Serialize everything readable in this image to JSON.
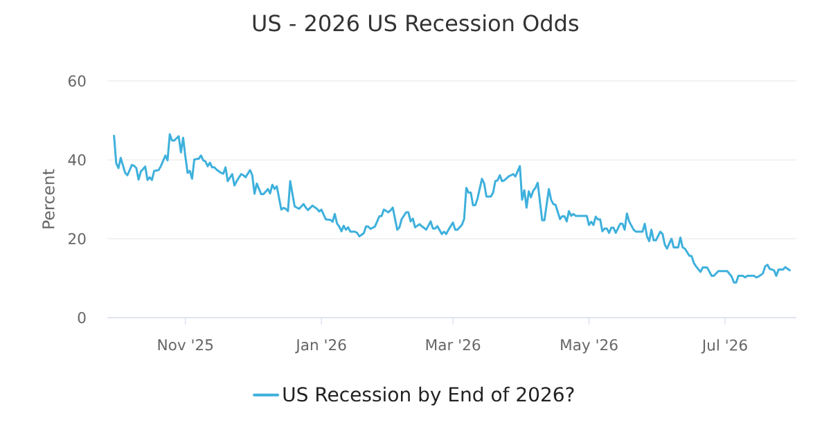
{
  "chart_data": {
    "type": "line",
    "title": "US - 2026 US Recession Odds",
    "ylabel": "Percent",
    "x": [
      "2025-09-30",
      "2025-10-01",
      "2025-10-02",
      "2025-10-03",
      "2025-10-05",
      "2025-10-06",
      "2025-10-08",
      "2025-10-09",
      "2025-10-10",
      "2025-10-11",
      "2025-10-12",
      "2025-10-14",
      "2025-10-15",
      "2025-10-16",
      "2025-10-17",
      "2025-10-18",
      "2025-10-20",
      "2025-10-21",
      "2025-10-23",
      "2025-10-24",
      "2025-10-25",
      "2025-10-26",
      "2025-10-27",
      "2025-10-29",
      "2025-10-30",
      "2025-10-31",
      "2025-11-01",
      "2025-11-02",
      "2025-11-03",
      "2025-11-04",
      "2025-11-05",
      "2025-11-07",
      "2025-11-08",
      "2025-11-09",
      "2025-11-10",
      "2025-11-11",
      "2025-11-12",
      "2025-11-13",
      "2025-11-14",
      "2025-11-15",
      "2025-11-17",
      "2025-11-18",
      "2025-11-19",
      "2025-11-20",
      "2025-11-22",
      "2025-11-23",
      "2025-11-24",
      "2025-11-26",
      "2025-11-27",
      "2025-11-28",
      "2025-11-30",
      "2025-12-01",
      "2025-12-02",
      "2025-12-03",
      "2025-12-05",
      "2025-12-06",
      "2025-12-08",
      "2025-12-09",
      "2025-12-10",
      "2025-12-11",
      "2025-12-12",
      "2025-12-14",
      "2025-12-15",
      "2025-12-16",
      "2025-12-17",
      "2025-12-18",
      "2025-12-20",
      "2025-12-21",
      "2025-12-22",
      "2025-12-24",
      "2025-12-25",
      "2025-12-26",
      "2025-12-28",
      "2025-12-30",
      "2025-12-31",
      "2026-01-01",
      "2026-01-03",
      "2026-01-05",
      "2026-01-06",
      "2026-01-07",
      "2026-01-08",
      "2026-01-09",
      "2026-01-10",
      "2026-01-11",
      "2026-01-12",
      "2026-01-13",
      "2026-01-14",
      "2026-01-16",
      "2026-01-17",
      "2026-01-18",
      "2026-01-20",
      "2026-01-21",
      "2026-01-22",
      "2026-01-23",
      "2026-01-25",
      "2026-01-27",
      "2026-01-28",
      "2026-01-29",
      "2026-01-31",
      "2026-02-01",
      "2026-02-02",
      "2026-02-04",
      "2026-02-05",
      "2026-02-06",
      "2026-02-08",
      "2026-02-09",
      "2026-02-10",
      "2026-02-11",
      "2026-02-12",
      "2026-02-14",
      "2026-02-15",
      "2026-02-17",
      "2026-02-19",
      "2026-02-20",
      "2026-02-21",
      "2026-02-22",
      "2026-02-24",
      "2026-02-25",
      "2026-02-26",
      "2026-02-27",
      "2026-03-01",
      "2026-03-02",
      "2026-03-03",
      "2026-03-05",
      "2026-03-06",
      "2026-03-07",
      "2026-03-08",
      "2026-03-09",
      "2026-03-10",
      "2026-03-11",
      "2026-03-12",
      "2026-03-14",
      "2026-03-15",
      "2026-03-16",
      "2026-03-18",
      "2026-03-19",
      "2026-03-20",
      "2026-03-21",
      "2026-03-22",
      "2026-03-23",
      "2026-03-24",
      "2026-03-26",
      "2026-03-27",
      "2026-03-28",
      "2026-03-29",
      "2026-03-31",
      "2026-04-01",
      "2026-04-02",
      "2026-04-03",
      "2026-04-04",
      "2026-04-05",
      "2026-04-06",
      "2026-04-07",
      "2026-04-08",
      "2026-04-10",
      "2026-04-11",
      "2026-04-13",
      "2026-04-14",
      "2026-04-15",
      "2026-04-16",
      "2026-04-18",
      "2026-04-19",
      "2026-04-20",
      "2026-04-21",
      "2026-04-22",
      "2026-04-23",
      "2026-04-24",
      "2026-04-25",
      "2026-04-30",
      "2026-05-01",
      "2026-05-02",
      "2026-05-03",
      "2026-05-04",
      "2026-05-05",
      "2026-05-06",
      "2026-05-07",
      "2026-05-08",
      "2026-05-09",
      "2026-05-10",
      "2026-05-11",
      "2026-05-12",
      "2026-05-13",
      "2026-05-15",
      "2026-05-16",
      "2026-05-17",
      "2026-05-18",
      "2026-05-19",
      "2026-05-21",
      "2026-05-22",
      "2026-05-25",
      "2026-05-26",
      "2026-05-27",
      "2026-05-28",
      "2026-05-29",
      "2026-05-30",
      "2026-05-31",
      "2026-06-02",
      "2026-06-03",
      "2026-06-04",
      "2026-06-05",
      "2026-06-06",
      "2026-06-07",
      "2026-06-08",
      "2026-06-10",
      "2026-06-11",
      "2026-06-12",
      "2026-06-13",
      "2026-06-15",
      "2026-06-16",
      "2026-06-17",
      "2026-06-18",
      "2026-06-20",
      "2026-06-21",
      "2026-06-23",
      "2026-06-25",
      "2026-06-26",
      "2026-06-28",
      "2026-07-02",
      "2026-07-04",
      "2026-07-05",
      "2026-07-06",
      "2026-07-07",
      "2026-07-09",
      "2026-07-10",
      "2026-07-11",
      "2026-07-14",
      "2026-07-15",
      "2026-07-16",
      "2026-07-18",
      "2026-07-19",
      "2026-07-20",
      "2026-07-21",
      "2026-07-23",
      "2026-07-24",
      "2026-07-25",
      "2026-07-27",
      "2026-07-28",
      "2026-07-30"
    ],
    "series": [
      {
        "name": "US Recession by End of 2026?",
        "color": "#3eb0dc",
        "values": [
          46.1,
          39.1,
          37.9,
          40.5,
          36.7,
          36.1,
          38.7,
          38.5,
          37.9,
          35.0,
          37.0,
          38.3,
          34.9,
          35.6,
          34.9,
          37.2,
          37.4,
          38.4,
          41.1,
          39.9,
          46.5,
          44.9,
          44.9,
          46.0,
          41.9,
          45.6,
          40.8,
          36.7,
          37.2,
          35.2,
          40.1,
          40.3,
          41.1,
          39.9,
          39.6,
          38.4,
          39.3,
          38.1,
          38.1,
          37.5,
          36.7,
          36.5,
          38.1,
          34.6,
          36.4,
          33.5,
          34.6,
          36.4,
          36.1,
          35.6,
          37.4,
          36.1,
          31.4,
          34.0,
          31.3,
          31.3,
          32.6,
          31.5,
          33.7,
          32.6,
          33.3,
          27.4,
          27.8,
          27.6,
          27.0,
          34.6,
          28.2,
          27.9,
          27.6,
          28.8,
          27.9,
          27.3,
          28.4,
          27.6,
          26.9,
          27.4,
          24.9,
          24.8,
          24.3,
          26.3,
          23.9,
          23.1,
          21.9,
          23.3,
          22.3,
          22.9,
          21.8,
          21.8,
          21.5,
          20.6,
          21.4,
          23.1,
          23.1,
          22.5,
          23.1,
          25.7,
          25.8,
          27.4,
          26.7,
          27.2,
          27.9,
          22.3,
          22.9,
          25.0,
          26.7,
          26.7,
          24.4,
          25.1,
          22.9,
          23.7,
          23.2,
          22.3,
          24.4,
          22.6,
          22.6,
          23.2,
          21.2,
          21.8,
          21.2,
          22.3,
          24.1,
          22.3,
          22.3,
          23.5,
          25.0,
          32.9,
          31.7,
          31.7,
          28.5,
          28.5,
          30.2,
          35.2,
          34.0,
          30.7,
          30.7,
          31.7,
          34.6,
          34.8,
          36.1,
          34.6,
          34.8,
          35.8,
          36.1,
          36.4,
          35.8,
          38.4,
          29.9,
          32.3,
          27.9,
          32.0,
          30.5,
          32.2,
          32.9,
          34.2,
          24.7,
          24.7,
          32.6,
          29.9,
          28.8,
          28.6,
          25.0,
          25.7,
          25.7,
          24.4,
          27.0,
          25.8,
          26.3,
          25.8,
          25.8,
          23.5,
          24.3,
          23.5,
          25.6,
          24.9,
          24.9,
          21.9,
          22.6,
          22.6,
          21.5,
          22.8,
          22.8,
          21.5,
          23.8,
          23.8,
          22.3,
          26.4,
          24.4,
          22.3,
          21.8,
          21.8,
          23.8,
          20.6,
          19.4,
          22.3,
          19.6,
          19.6,
          21.8,
          21.2,
          18.5,
          17.5,
          18.8,
          20.0,
          17.8,
          17.8,
          20.3,
          17.8,
          17.5,
          15.7,
          15.6,
          13.9,
          13.0,
          11.6,
          12.7,
          12.7,
          10.6,
          10.6,
          11.8,
          11.8,
          10.4,
          8.9,
          8.9,
          10.6,
          10.6,
          10.2,
          10.6,
          10.6,
          10.2,
          10.4,
          11.2,
          13.0,
          13.4,
          12.4,
          12.0,
          10.6,
          12.2,
          12.2,
          12.8,
          12.0
        ]
      }
    ],
    "xlim": [
      "2025-09-27",
      "2026-08-02"
    ],
    "xticks": [
      {
        "value": "2025-11-01",
        "label": "Nov '25"
      },
      {
        "value": "2026-01-01",
        "label": "Jan '26"
      },
      {
        "value": "2026-03-01",
        "label": "Mar '26"
      },
      {
        "value": "2026-05-01",
        "label": "May '26"
      },
      {
        "value": "2026-07-01",
        "label": "Jul '26"
      }
    ],
    "ylim": [
      0,
      60
    ],
    "yticks": [
      0,
      20,
      40,
      60
    ],
    "grid": "y",
    "legend": "bottom"
  }
}
